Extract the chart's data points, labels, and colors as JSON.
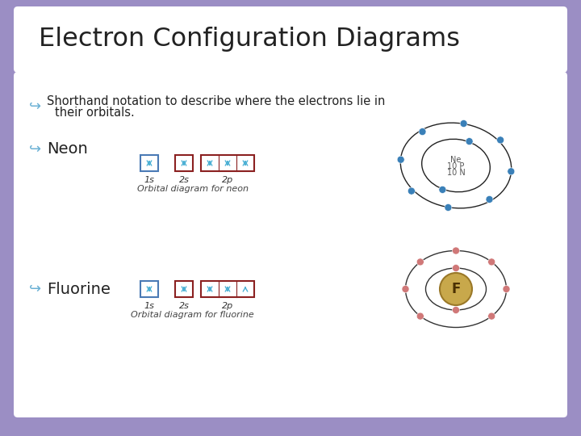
{
  "title": "Electron Configuration Diagrams",
  "bg_outer": "#9b8ec4",
  "bg_title": "#ffffff",
  "bg_content": "#f5f5f8",
  "title_color": "#222222",
  "text_color": "#222222",
  "bullet_color": "#6ab0d4",
  "neon_label": "Neon",
  "fluorine_label": "Fluorine",
  "neon_orbital_caption": "Orbital diagram for neon",
  "fluorine_orbital_caption": "Orbital diagram for fluorine",
  "box_blue": "#4a7ab5",
  "box_red": "#8b2020",
  "arrow_color": "#4ab0d4",
  "neon_electron_color": "#3a80b8",
  "fluorine_electron_color": "#d07878",
  "neon_nucleus_lines": [
    "Ne",
    "10 P",
    "10 N"
  ],
  "fluorine_nucleus_label": "F",
  "nucleus_gold": "#c8a84b",
  "nucleus_gold_edge": "#9a7828"
}
